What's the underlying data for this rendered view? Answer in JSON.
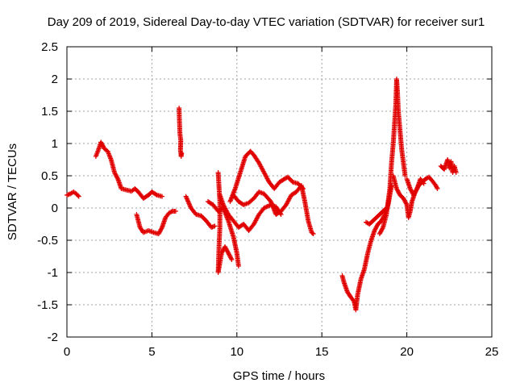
{
  "chart_data": {
    "type": "scatter",
    "title": "Day 209 of 2019, Sidereal Day-to-day VTEC variation (SDTVAR) for receiver sur1",
    "xlabel": "GPS time / hours",
    "ylabel": "SDTVAR / TECUs",
    "xlim": [
      0,
      25
    ],
    "ylim": [
      -2,
      2.5
    ],
    "xticks": [
      0,
      5,
      10,
      15,
      20,
      25
    ],
    "yticks": [
      -2,
      -1.5,
      -1,
      -0.5,
      0,
      0.5,
      1,
      1.5,
      2,
      2.5
    ],
    "xtick_labels": [
      "0",
      "5",
      "10",
      "15",
      "20",
      "25"
    ],
    "ytick_labels": [
      "-2",
      "-1.5",
      "-1",
      "-0.5",
      "0",
      "0.5",
      "1",
      "1.5",
      "2",
      "2.5"
    ],
    "grid": true,
    "marker": "+",
    "series": [
      {
        "name": "sur1",
        "color": "#e00000",
        "segments": [
          [
            [
              0.0,
              0.2
            ],
            [
              0.2,
              0.22
            ],
            [
              0.4,
              0.25
            ],
            [
              0.55,
              0.22
            ],
            [
              0.7,
              0.18
            ]
          ],
          [
            [
              1.7,
              0.8
            ],
            [
              1.85,
              0.9
            ],
            [
              2.0,
              1.02
            ],
            [
              2.2,
              0.92
            ],
            [
              2.4,
              0.88
            ],
            [
              2.6,
              0.75
            ],
            [
              2.8,
              0.55
            ],
            [
              3.0,
              0.45
            ],
            [
              3.2,
              0.3
            ],
            [
              3.5,
              0.28
            ],
            [
              3.8,
              0.26
            ],
            [
              4.0,
              0.3
            ],
            [
              4.2,
              0.25
            ],
            [
              4.5,
              0.15
            ],
            [
              4.8,
              0.2
            ],
            [
              5.0,
              0.25
            ],
            [
              5.3,
              0.2
            ],
            [
              5.6,
              0.18
            ]
          ],
          [
            [
              4.1,
              -0.1
            ],
            [
              4.3,
              -0.3
            ],
            [
              4.5,
              -0.38
            ],
            [
              4.8,
              -0.35
            ],
            [
              5.1,
              -0.38
            ],
            [
              5.4,
              -0.4
            ],
            [
              5.6,
              -0.3
            ],
            [
              5.8,
              -0.15
            ],
            [
              6.0,
              -0.08
            ],
            [
              6.2,
              -0.05
            ],
            [
              6.4,
              -0.05
            ]
          ],
          [
            [
              6.6,
              1.55
            ],
            [
              6.62,
              1.35
            ],
            [
              6.65,
              1.15
            ],
            [
              6.7,
              1.05
            ],
            [
              6.68,
              0.9
            ],
            [
              6.72,
              0.8
            ],
            [
              6.75,
              0.85
            ]
          ],
          [
            [
              7.0,
              0.18
            ],
            [
              7.3,
              0.0
            ],
            [
              7.6,
              -0.1
            ],
            [
              7.9,
              -0.12
            ],
            [
              8.2,
              -0.2
            ],
            [
              8.5,
              -0.3
            ],
            [
              8.7,
              -0.28
            ]
          ],
          [
            [
              8.3,
              0.1
            ],
            [
              8.6,
              0.05
            ],
            [
              8.9,
              -0.05
            ],
            [
              9.2,
              0.0
            ],
            [
              9.5,
              -0.2
            ],
            [
              9.8,
              -0.45
            ],
            [
              10.0,
              -0.7
            ],
            [
              10.1,
              -0.9
            ]
          ],
          [
            [
              8.9,
              0.55
            ],
            [
              9.0,
              0.1
            ],
            [
              9.0,
              -0.3
            ],
            [
              8.95,
              -0.6
            ],
            [
              8.9,
              -1.0
            ],
            [
              9.1,
              -0.7
            ],
            [
              9.3,
              -0.6
            ],
            [
              9.5,
              -0.7
            ],
            [
              9.7,
              -0.8
            ]
          ],
          [
            [
              9.0,
              0.2
            ],
            [
              9.2,
              0.05
            ],
            [
              9.5,
              -0.1
            ],
            [
              9.8,
              -0.2
            ],
            [
              10.1,
              -0.3
            ],
            [
              10.4,
              -0.25
            ],
            [
              10.7,
              -0.35
            ],
            [
              11.0,
              -0.25
            ],
            [
              11.3,
              -0.1
            ],
            [
              11.6,
              0.0
            ],
            [
              12.0,
              0.05
            ],
            [
              12.3,
              0.02
            ],
            [
              12.6,
              -0.1
            ]
          ],
          [
            [
              9.6,
              0.1
            ],
            [
              9.9,
              0.3
            ],
            [
              10.2,
              0.55
            ],
            [
              10.5,
              0.8
            ],
            [
              10.8,
              0.88
            ],
            [
              11.0,
              0.82
            ],
            [
              11.3,
              0.7
            ],
            [
              11.6,
              0.55
            ],
            [
              11.9,
              0.4
            ],
            [
              12.2,
              0.3
            ],
            [
              12.5,
              0.4
            ],
            [
              12.8,
              0.45
            ],
            [
              13.0,
              0.48
            ],
            [
              13.3,
              0.4
            ],
            [
              13.6,
              0.38
            ],
            [
              13.9,
              0.3
            ]
          ],
          [
            [
              9.8,
              0.2
            ],
            [
              10.1,
              0.1
            ],
            [
              10.4,
              0.05
            ],
            [
              10.7,
              0.08
            ],
            [
              11.0,
              0.15
            ],
            [
              11.3,
              0.25
            ],
            [
              11.6,
              0.22
            ],
            [
              12.0,
              0.1
            ],
            [
              12.3,
              -0.1
            ],
            [
              12.6,
              -0.05
            ],
            [
              12.9,
              0.05
            ],
            [
              13.2,
              0.2
            ],
            [
              13.5,
              0.25
            ],
            [
              13.8,
              0.35
            ],
            [
              14.0,
              0.1
            ],
            [
              14.2,
              -0.2
            ],
            [
              14.4,
              -0.38
            ],
            [
              14.5,
              -0.4
            ]
          ],
          [
            [
              16.2,
              -1.05
            ],
            [
              16.3,
              -1.15
            ],
            [
              16.5,
              -1.3
            ],
            [
              16.7,
              -1.38
            ],
            [
              16.9,
              -1.45
            ],
            [
              17.0,
              -1.58
            ],
            [
              17.1,
              -1.35
            ],
            [
              17.3,
              -1.1
            ],
            [
              17.5,
              -0.95
            ],
            [
              17.7,
              -0.7
            ],
            [
              17.9,
              -0.5
            ],
            [
              18.1,
              -0.35
            ],
            [
              18.3,
              -0.25
            ],
            [
              18.5,
              -0.2
            ],
            [
              18.7,
              -0.1
            ],
            [
              18.9,
              0.05
            ],
            [
              19.0,
              0.2
            ],
            [
              19.1,
              0.35
            ]
          ],
          [
            [
              17.6,
              -0.22
            ],
            [
              17.8,
              -0.25
            ],
            [
              18.0,
              -0.2
            ],
            [
              18.2,
              -0.15
            ],
            [
              18.4,
              -0.1
            ],
            [
              18.6,
              -0.05
            ],
            [
              18.8,
              0.0
            ]
          ],
          [
            [
              18.4,
              -0.4
            ],
            [
              18.6,
              -0.3
            ],
            [
              18.8,
              -0.1
            ],
            [
              19.0,
              0.3
            ],
            [
              19.1,
              0.7
            ],
            [
              19.2,
              1.0
            ],
            [
              19.3,
              1.4
            ],
            [
              19.35,
              1.6
            ],
            [
              19.4,
              2.0
            ],
            [
              19.45,
              1.8
            ],
            [
              19.5,
              1.5
            ],
            [
              19.6,
              1.2
            ],
            [
              19.7,
              0.9
            ],
            [
              19.8,
              0.7
            ],
            [
              19.9,
              0.5
            ]
          ],
          [
            [
              19.2,
              0.5
            ],
            [
              19.4,
              0.3
            ],
            [
              19.6,
              0.2
            ],
            [
              19.8,
              0.15
            ],
            [
              20.0,
              0.05
            ],
            [
              20.1,
              -0.15
            ],
            [
              20.2,
              -0.05
            ],
            [
              20.3,
              0.1
            ],
            [
              20.5,
              0.25
            ],
            [
              20.7,
              0.35
            ],
            [
              20.9,
              0.4
            ],
            [
              21.1,
              0.45
            ],
            [
              21.3,
              0.48
            ],
            [
              21.5,
              0.42
            ],
            [
              21.7,
              0.35
            ],
            [
              21.8,
              0.3
            ]
          ],
          [
            [
              20.0,
              0.45
            ],
            [
              20.2,
              0.3
            ],
            [
              20.4,
              0.2
            ],
            [
              20.6,
              0.3
            ],
            [
              20.8,
              0.45
            ],
            [
              21.0,
              0.38
            ]
          ],
          [
            [
              22.0,
              0.65
            ],
            [
              22.2,
              0.6
            ],
            [
              22.4,
              0.75
            ],
            [
              22.5,
              0.62
            ],
            [
              22.6,
              0.72
            ],
            [
              22.7,
              0.55
            ],
            [
              22.8,
              0.65
            ],
            [
              22.9,
              0.55
            ]
          ]
        ]
      }
    ]
  }
}
